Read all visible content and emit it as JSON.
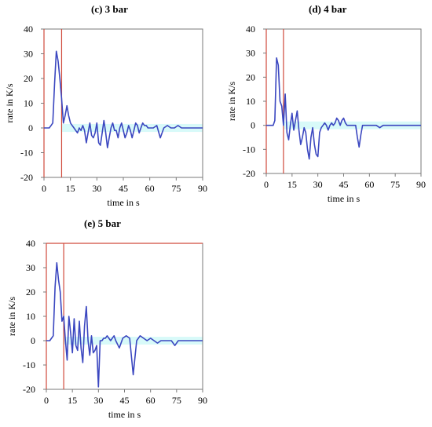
{
  "chart_data": [
    {
      "type": "line",
      "title": "(c) 3 bar",
      "xlabel": "time in s",
      "ylabel": "rate in K/s",
      "xlim": [
        0,
        90
      ],
      "ylim": [
        -20,
        40
      ],
      "xticks": [
        "0",
        "15",
        "30",
        "45",
        "60",
        "75",
        "90"
      ],
      "yticks": [
        "40",
        "30",
        "20",
        "10",
        "0",
        "-10",
        "-20"
      ],
      "grid": false,
      "markers_x": [
        0,
        10
      ],
      "markers_color": "#d04a3c",
      "line_color": "#3b47c0",
      "band_color": "#8ef1ef",
      "series": [
        {
          "x": [
            0,
            2,
            3,
            4,
            5,
            6,
            7,
            8,
            9,
            10,
            11,
            12,
            13,
            14,
            15,
            16,
            17,
            18,
            19,
            20,
            21,
            22,
            23,
            24,
            25,
            26,
            27,
            28,
            29,
            30,
            31,
            32,
            33,
            34,
            35,
            36,
            37,
            38,
            39,
            40,
            41,
            42,
            43,
            44,
            45,
            46,
            47,
            48,
            49,
            50,
            51,
            52,
            53,
            54,
            55,
            56,
            57,
            58,
            59,
            60,
            62,
            64,
            66,
            68,
            70,
            72,
            74,
            76,
            78,
            80,
            82,
            84,
            86,
            88,
            90
          ],
          "y": [
            0,
            0,
            0,
            1,
            2,
            18,
            31,
            27,
            20,
            12,
            2,
            5,
            9,
            5,
            2,
            1,
            0,
            -1,
            -2,
            0,
            -1,
            1,
            -1,
            -6,
            -2,
            2,
            -3,
            -4,
            -2,
            2,
            -6,
            -7,
            -2,
            3,
            -2,
            -8,
            -4,
            0,
            2,
            -1,
            -1,
            -4,
            0,
            2,
            -1,
            -4,
            -2,
            1,
            -1,
            -4,
            -1,
            2,
            1,
            -2,
            0,
            2,
            1,
            1,
            0,
            0,
            0,
            1,
            -4,
            0,
            1,
            0,
            0,
            1,
            0,
            0,
            0,
            0,
            0,
            0,
            0
          ]
        }
      ]
    },
    {
      "type": "line",
      "title": "(d) 4 bar",
      "xlabel": "time in s",
      "ylabel": "rate in K/s",
      "xlim": [
        0,
        90
      ],
      "ylim": [
        -20,
        40
      ],
      "xticks": [
        "0",
        "15",
        "30",
        "45",
        "60",
        "75",
        "90"
      ],
      "yticks": [
        "40",
        "30",
        "20",
        "10",
        "0",
        "-10",
        "-20"
      ],
      "grid": false,
      "markers_x": [
        0,
        10
      ],
      "markers_color": "#d04a3c",
      "line_color": "#3b47c0",
      "band_color": "#8ef1ef",
      "series": [
        {
          "x": [
            0,
            2,
            3,
            4,
            5,
            6,
            7,
            8,
            9,
            10,
            11,
            12,
            13,
            14,
            15,
            16,
            17,
            18,
            19,
            20,
            21,
            22,
            23,
            24,
            25,
            26,
            27,
            28,
            29,
            30,
            31,
            32,
            33,
            34,
            35,
            36,
            37,
            38,
            39,
            40,
            41,
            42,
            43,
            44,
            45,
            46,
            47,
            48,
            49,
            50,
            51,
            52,
            53,
            54,
            55,
            56,
            57,
            58,
            59,
            60,
            62,
            64,
            66,
            68,
            70,
            72,
            74,
            76,
            78,
            80,
            82,
            84,
            86,
            88,
            90
          ],
          "y": [
            0,
            0,
            0,
            0,
            2,
            28,
            25,
            10,
            8,
            0,
            13,
            -3,
            -6,
            0,
            5,
            -2,
            2,
            6,
            -2,
            -8,
            -5,
            -1,
            -3,
            -10,
            -14,
            -5,
            -1,
            -8,
            -12,
            -13,
            -3,
            -1,
            0,
            1,
            0,
            -2,
            0,
            1,
            0,
            1,
            3,
            2,
            0,
            2,
            3,
            1,
            0,
            0,
            0,
            0,
            0,
            0,
            -5,
            -9,
            -4,
            0,
            0,
            0,
            0,
            0,
            0,
            0,
            -1,
            0,
            0,
            0,
            0,
            0,
            0,
            0,
            0,
            0,
            0,
            0,
            0
          ]
        }
      ]
    },
    {
      "type": "line",
      "title": "(e) 5 bar",
      "xlabel": "time in s",
      "ylabel": "rate in K/s",
      "xlim": [
        0,
        90
      ],
      "ylim": [
        -20,
        40
      ],
      "xticks": [
        "0",
        "15",
        "30",
        "45",
        "60",
        "75",
        "90"
      ],
      "yticks": [
        "40",
        "30",
        "20",
        "10",
        "0",
        "-10",
        "-20"
      ],
      "grid": false,
      "markers_x": [
        0,
        10
      ],
      "markers_color": "#d04a3c",
      "line_color": "#3b47c0",
      "band_color": "#8ef1ef",
      "series": [
        {
          "x": [
            0,
            2,
            3,
            4,
            5,
            6,
            7,
            8,
            9,
            10,
            11,
            12,
            13,
            14,
            15,
            16,
            17,
            18,
            19,
            20,
            21,
            22,
            23,
            24,
            25,
            26,
            27,
            28,
            29,
            30,
            31,
            32,
            33,
            34,
            35,
            36,
            37,
            38,
            39,
            40,
            42,
            44,
            46,
            48,
            50,
            52,
            54,
            56,
            58,
            60,
            62,
            64,
            66,
            68,
            70,
            72,
            74,
            76,
            78,
            80,
            82,
            84,
            86,
            88,
            90
          ],
          "y": [
            0,
            0,
            1,
            2,
            22,
            32,
            25,
            20,
            8,
            10,
            0,
            -8,
            10,
            3,
            -5,
            9,
            -2,
            -4,
            8,
            -3,
            -9,
            6,
            14,
            0,
            -6,
            2,
            -5,
            -4,
            -2,
            -19,
            0,
            0,
            1,
            1,
            2,
            1,
            0,
            1,
            2,
            0,
            -3,
            1,
            2,
            1,
            -14,
            0,
            2,
            1,
            0,
            1,
            0,
            -1,
            0,
            0,
            0,
            0,
            -2,
            0,
            0,
            0,
            0,
            0,
            0,
            0,
            0
          ]
        }
      ]
    }
  ]
}
